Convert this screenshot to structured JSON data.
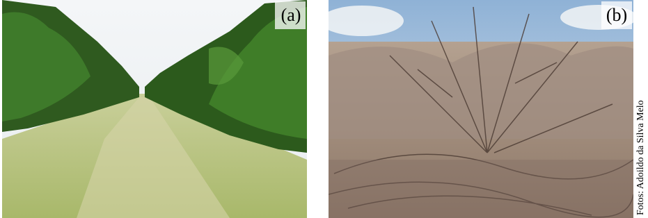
{
  "panels": [
    {
      "label": "(a)"
    },
    {
      "label": "(b)"
    }
  ],
  "credit": "Fotos: Adoildo da Silva Melo"
}
